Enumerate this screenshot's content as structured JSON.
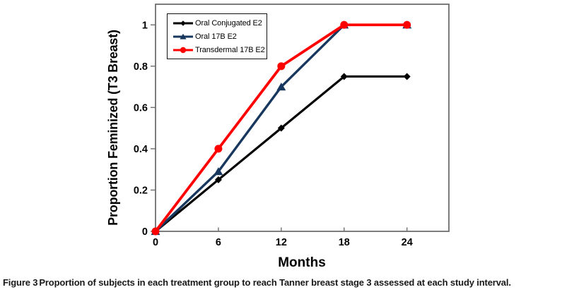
{
  "figure": {
    "caption_label": "Figure 3",
    "caption_text": "Proportion of subjects in each treatment group to reach Tanner breast stage 3 assessed at each study interval."
  },
  "chart_data": {
    "type": "line",
    "title": "",
    "xlabel": "Months",
    "ylabel": "Proportion Feminized (T3 Breast)",
    "x": [
      0,
      6,
      12,
      18,
      24
    ],
    "xtick_labels": [
      "0",
      "6",
      "12",
      "18",
      "24"
    ],
    "yticks": [
      0,
      0.2,
      0.4,
      0.6,
      0.8,
      1
    ],
    "ytick_labels": [
      "0",
      "0.2",
      "0.4",
      "0.6",
      "0.8",
      "1"
    ],
    "xlim": [
      0,
      28
    ],
    "ylim": [
      0,
      1.1
    ],
    "grid": false,
    "legend_position": "top-left",
    "series": [
      {
        "name": "Oral Conjugated E2",
        "color": "#000000",
        "marker": "diamond",
        "values": [
          0,
          0.25,
          0.5,
          0.75,
          0.75
        ]
      },
      {
        "name": "Oral 17B E2",
        "color": "#17375E",
        "marker": "triangle",
        "values": [
          0,
          0.29,
          0.7,
          1.0,
          1.0
        ]
      },
      {
        "name": "Transdermal 17B E2",
        "color": "#FF0000",
        "marker": "circle",
        "values": [
          0,
          0.4,
          0.8,
          1.0,
          1.0
        ]
      }
    ],
    "axis_color": "#6e6e6e"
  }
}
